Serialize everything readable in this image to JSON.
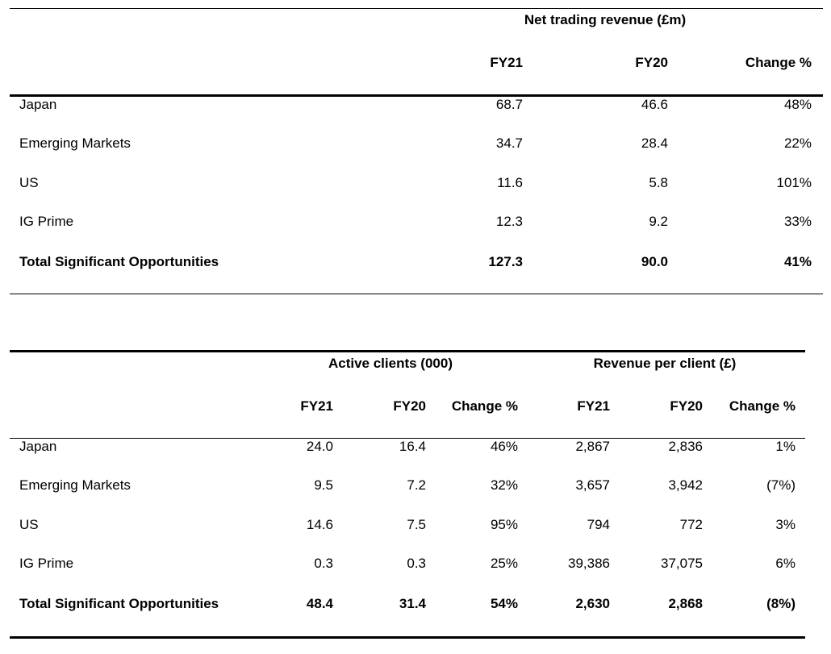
{
  "table1": {
    "group_header": "Net trading revenue (£m)",
    "columns": [
      "FY21",
      "FY20",
      "Change %"
    ],
    "rows": [
      {
        "label": "Japan",
        "fy21": "68.7",
        "fy20": "46.6",
        "change": "48%"
      },
      {
        "label": "Emerging Markets",
        "fy21": "34.7",
        "fy20": "28.4",
        "change": "22%"
      },
      {
        "label": "US",
        "fy21": "11.6",
        "fy20": "5.8",
        "change": "101%"
      },
      {
        "label": "IG Prime",
        "fy21": "12.3",
        "fy20": "9.2",
        "change": "33%"
      }
    ],
    "total": {
      "label": "Total Significant Opportunities",
      "fy21": "127.3",
      "fy20": "90.0",
      "change": "41%"
    }
  },
  "table2": {
    "group_headers": [
      "Active clients (000)",
      "Revenue per client (£)"
    ],
    "columns": [
      "FY21",
      "FY20",
      "Change %",
      "FY21",
      "FY20",
      "Change %"
    ],
    "rows": [
      {
        "label": "Japan",
        "ac_fy21": "24.0",
        "ac_fy20": "16.4",
        "ac_change": "46%",
        "rpc_fy21": "2,867",
        "rpc_fy20": "2,836",
        "rpc_change": "1%"
      },
      {
        "label": "Emerging Markets",
        "ac_fy21": "9.5",
        "ac_fy20": "7.2",
        "ac_change": "32%",
        "rpc_fy21": "3,657",
        "rpc_fy20": "3,942",
        "rpc_change": "(7%)"
      },
      {
        "label": "US",
        "ac_fy21": "14.6",
        "ac_fy20": "7.5",
        "ac_change": "95%",
        "rpc_fy21": "794",
        "rpc_fy20": "772",
        "rpc_change": "3%"
      },
      {
        "label": "IG Prime",
        "ac_fy21": "0.3",
        "ac_fy20": "0.3",
        "ac_change": "25%",
        "rpc_fy21": "39,386",
        "rpc_fy20": "37,075",
        "rpc_change": "6%"
      }
    ],
    "total": {
      "label": "Total Significant Opportunities",
      "ac_fy21": "48.4",
      "ac_fy20": "31.4",
      "ac_change": "54%",
      "rpc_fy21": "2,630",
      "rpc_fy20": "2,868",
      "rpc_change": "(8%)"
    }
  }
}
